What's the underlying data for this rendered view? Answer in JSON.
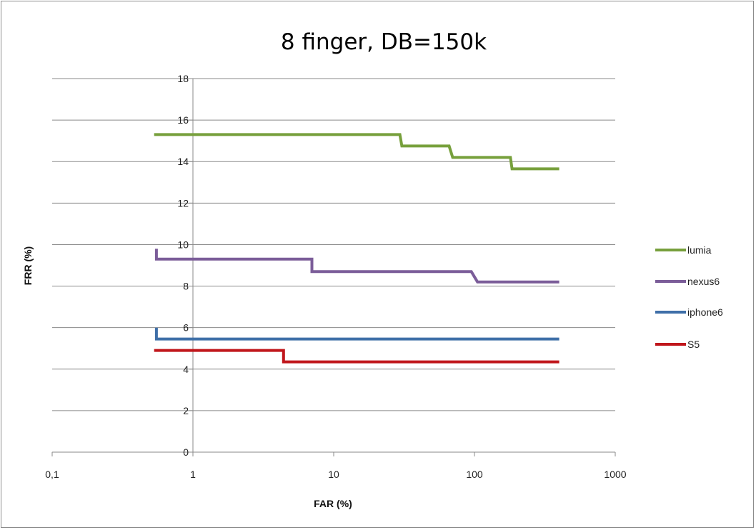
{
  "chart_data": {
    "type": "line",
    "title": "8 finger, DB=150k",
    "xlabel": "FAR (%)",
    "ylabel": "FRR (%)",
    "x_scale": "log",
    "xlim": [
      0.1,
      1000
    ],
    "ylim": [
      0,
      18
    ],
    "x_ticks": [
      0.1,
      1,
      10,
      100,
      1000
    ],
    "x_tick_labels": [
      "0,1",
      "1",
      "10",
      "100",
      "1000"
    ],
    "y_ticks": [
      0,
      2,
      4,
      6,
      8,
      10,
      12,
      14,
      16,
      18
    ],
    "y_tick_labels": [
      "0",
      "2",
      "4",
      "6",
      "8",
      "10",
      "12",
      "14",
      "16",
      "18"
    ],
    "grid": "horizontal",
    "legend_position": "right",
    "series": [
      {
        "name": "lumia",
        "color": "#77a03c",
        "points": [
          [
            0.53,
            15.3
          ],
          [
            29.5,
            15.3
          ],
          [
            30.5,
            14.75
          ],
          [
            66,
            14.75
          ],
          [
            70,
            14.2
          ],
          [
            180,
            14.2
          ],
          [
            185,
            13.65
          ],
          [
            400,
            13.65
          ]
        ]
      },
      {
        "name": "nexus6",
        "color": "#7b5d99",
        "points": [
          [
            0.55,
            9.8
          ],
          [
            0.55,
            9.3
          ],
          [
            7.0,
            9.3
          ],
          [
            7.0,
            8.7
          ],
          [
            95,
            8.7
          ],
          [
            105,
            8.2
          ],
          [
            400,
            8.2
          ]
        ]
      },
      {
        "name": "iphone6",
        "color": "#3f6fa8",
        "points": [
          [
            0.55,
            6.0
          ],
          [
            0.55,
            5.45
          ],
          [
            400,
            5.45
          ]
        ]
      },
      {
        "name": "S5",
        "color": "#c0161b",
        "points": [
          [
            0.53,
            4.9
          ],
          [
            4.4,
            4.9
          ],
          [
            4.4,
            4.35
          ],
          [
            400,
            4.35
          ]
        ]
      }
    ]
  }
}
